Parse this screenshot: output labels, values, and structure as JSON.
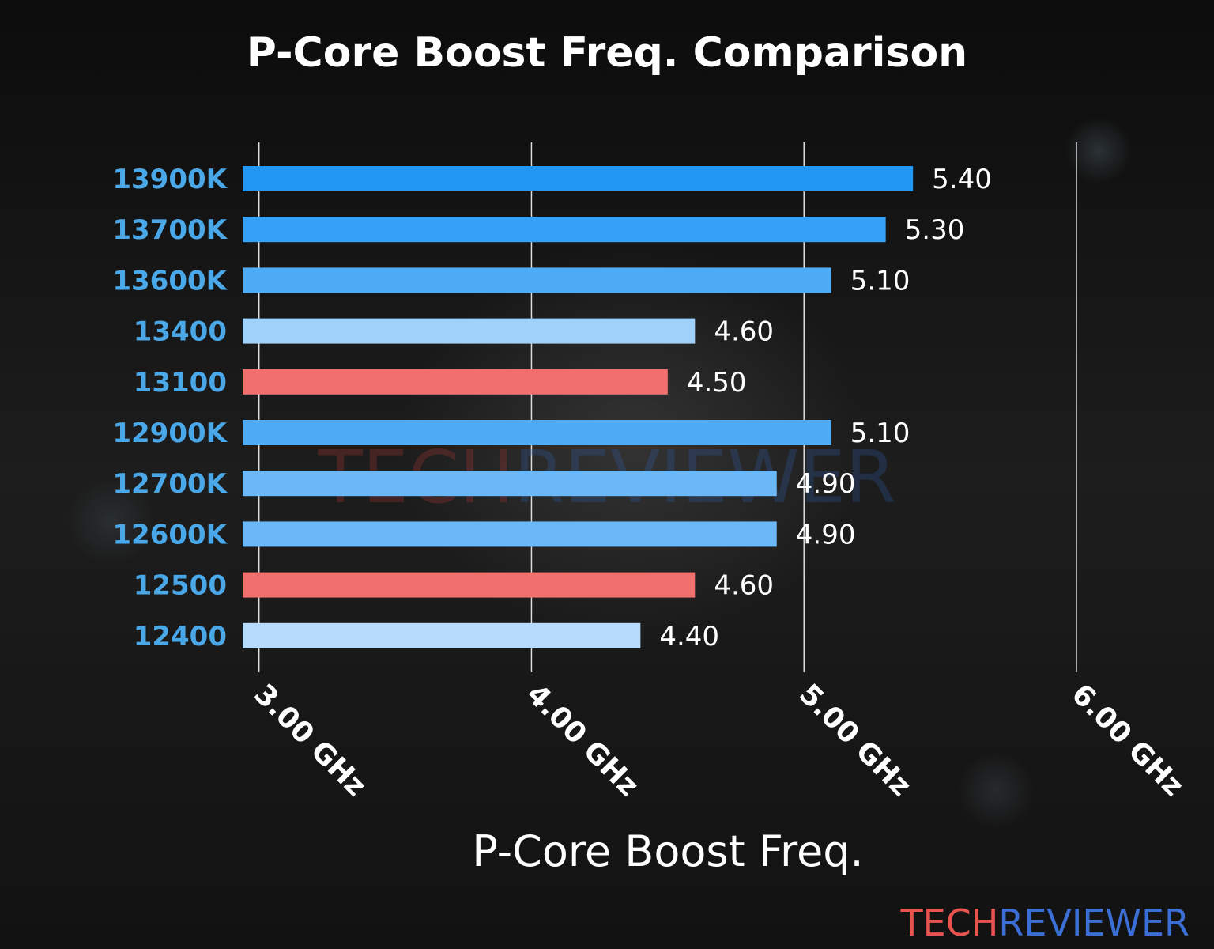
{
  "chart_data": {
    "type": "bar",
    "orientation": "horizontal",
    "title": "P-Core Boost Freq. Comparison",
    "xlabel": "P-Core Boost Freq.",
    "ylabel": "",
    "categories": [
      "13900K",
      "13700K",
      "13600K",
      "13400",
      "13100",
      "12900K",
      "12700K",
      "12600K",
      "12500",
      "12400"
    ],
    "values": [
      5.4,
      5.3,
      5.1,
      4.6,
      4.5,
      5.1,
      4.9,
      4.9,
      4.6,
      4.4
    ],
    "value_labels": [
      "5.40",
      "5.30",
      "5.10",
      "4.60",
      "4.50",
      "5.10",
      "4.90",
      "4.90",
      "4.60",
      "4.40"
    ],
    "bar_colors": [
      "#2196f3",
      "#35a0f5",
      "#4eacf6",
      "#9fd1fa",
      "#f0706d",
      "#4eacf6",
      "#6ab8f7",
      "#6ab8f7",
      "#f0706d",
      "#b7dcfb"
    ],
    "xlim": [
      2.94,
      6.0
    ],
    "xticks": [
      3,
      4,
      5,
      6
    ],
    "xtick_labels": [
      "3.00 GHz",
      "4.00 GHz",
      "5.00 GHz",
      "6.00 GHz"
    ],
    "grid": "vertical",
    "category_color": "#4aa8e8"
  },
  "watermark": {
    "part1": "TECH",
    "part2": "REVIEWER"
  },
  "brand": {
    "part1": "TECH",
    "part2": "REVIEWER",
    "color1": "#e8534f",
    "color2": "#3b6fd6"
  }
}
